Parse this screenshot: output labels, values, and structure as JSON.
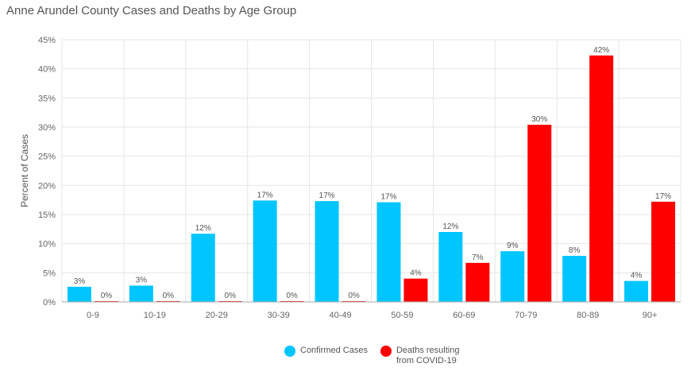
{
  "chart_data": {
    "type": "bar",
    "title": "Anne Arundel County Cases and Deaths by Age Group",
    "xlabel": "",
    "ylabel": "Percent of Cases",
    "ylim": [
      0,
      45
    ],
    "yticks": [
      "0%",
      "5%",
      "10%",
      "15%",
      "20%",
      "25%",
      "30%",
      "35%",
      "40%",
      "45%"
    ],
    "categories": [
      "0-9",
      "10-19",
      "20-29",
      "30-39",
      "40-49",
      "50-59",
      "60-69",
      "70-79",
      "80-89",
      "90+"
    ],
    "grid": true,
    "legend_position": "bottom",
    "series": [
      {
        "name": "Confirmed Cases",
        "color": "#00c5ff",
        "values": [
          2.6,
          2.8,
          11.7,
          17.4,
          17.3,
          17.1,
          12.0,
          8.7,
          7.9,
          3.6
        ],
        "labels": [
          "3%",
          "3%",
          "12%",
          "17%",
          "17%",
          "17%",
          "12%",
          "9%",
          "8%",
          "4%"
        ]
      },
      {
        "name": "Deaths resulting\nfrom COVID-19",
        "color": "#ff0000",
        "values": [
          0.1,
          0.1,
          0.1,
          0.1,
          0.1,
          4.0,
          6.7,
          30.4,
          42.3,
          17.2
        ],
        "labels": [
          "0%",
          "0%",
          "0%",
          "0%",
          "0%",
          "4%",
          "7%",
          "30%",
          "42%",
          "17%"
        ]
      }
    ]
  }
}
